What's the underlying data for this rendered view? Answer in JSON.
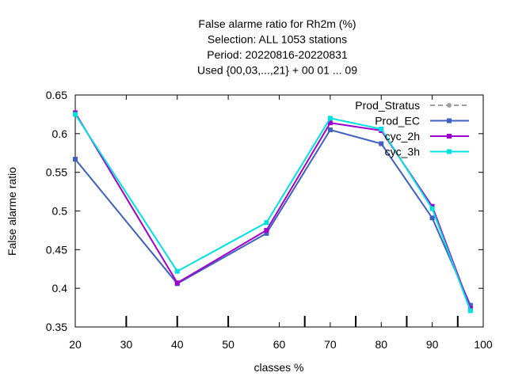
{
  "chart_data": {
    "type": "line",
    "title_lines": [
      "False alarme ratio  for Rh2m (%)",
      "Selection: ALL    1053 stations",
      "Period: 20220816-20220831",
      "Used {00,03,...,21} + 00 01 ... 09"
    ],
    "xlabel": "classes %",
    "ylabel": "False alarme ratio",
    "xlim": [
      20,
      100
    ],
    "ylim": [
      0.35,
      0.65
    ],
    "xticks": [
      20,
      30,
      40,
      50,
      60,
      70,
      80,
      90,
      100
    ],
    "yticks": [
      0.35,
      0.4,
      0.45,
      0.5,
      0.55,
      0.6,
      0.65
    ],
    "ytick_labels": [
      "0.35",
      "0.4",
      "0.45",
      "0.5",
      "0.55",
      "0.6",
      "0.65"
    ],
    "bottom_marks": [
      30,
      40,
      50,
      65,
      75,
      85,
      95
    ],
    "legend_position": "top-right",
    "series": [
      {
        "name": "Prod_Stratus",
        "color": "#a0a0a0",
        "dashed": true,
        "marker": "circle",
        "x": [],
        "y": []
      },
      {
        "name": "Prod_EC",
        "color": "#4060c0",
        "dashed": false,
        "marker": "square",
        "x": [
          20,
          40,
          57.5,
          70,
          80,
          90,
          97.5
        ],
        "y": [
          0.567,
          0.406,
          0.471,
          0.605,
          0.587,
          0.491,
          0.378
        ]
      },
      {
        "name": "cyc_2h",
        "color": "#a000d0",
        "dashed": false,
        "marker": "square",
        "x": [
          20,
          40,
          57.5,
          70,
          80,
          90,
          97.5
        ],
        "y": [
          0.627,
          0.407,
          0.475,
          0.614,
          0.604,
          0.506,
          0.374
        ]
      },
      {
        "name": "cyc_3h",
        "color": "#00e0e0",
        "dashed": false,
        "marker": "square",
        "x": [
          20,
          40,
          57.5,
          70,
          80,
          90,
          97.5
        ],
        "y": [
          0.625,
          0.422,
          0.485,
          0.62,
          0.606,
          0.503,
          0.371
        ]
      }
    ]
  }
}
